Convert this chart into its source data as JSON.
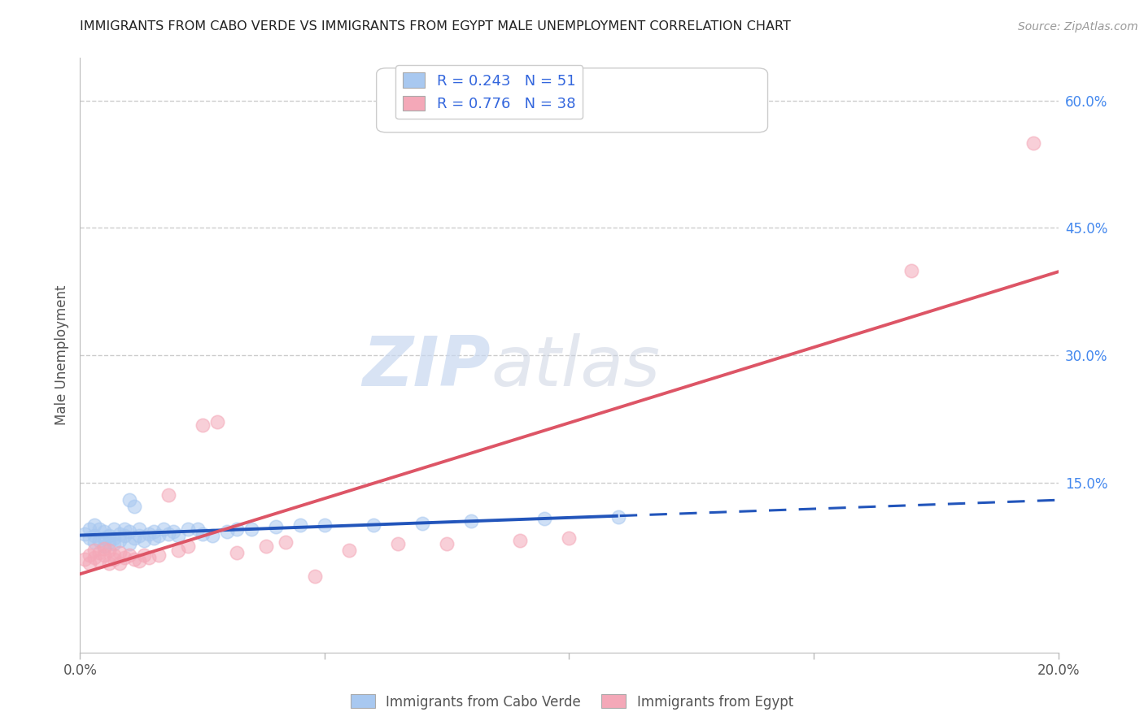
{
  "title": "IMMIGRANTS FROM CABO VERDE VS IMMIGRANTS FROM EGYPT MALE UNEMPLOYMENT CORRELATION CHART",
  "source": "Source: ZipAtlas.com",
  "ylabel": "Male Unemployment",
  "xlim": [
    0.0,
    0.2
  ],
  "ylim": [
    -0.05,
    0.65
  ],
  "legend_r1": "R = 0.243",
  "legend_n1": "N = 51",
  "legend_r2": "R = 0.776",
  "legend_n2": "N = 38",
  "color_blue": "#A8C8F0",
  "color_pink": "#F4A8B8",
  "color_blue_line": "#2255BB",
  "color_pink_line": "#DD5566",
  "cabo_verde_x": [
    0.001,
    0.002,
    0.002,
    0.003,
    0.003,
    0.003,
    0.004,
    0.004,
    0.005,
    0.005,
    0.005,
    0.006,
    0.006,
    0.007,
    0.007,
    0.007,
    0.008,
    0.008,
    0.009,
    0.009,
    0.01,
    0.01,
    0.01,
    0.011,
    0.011,
    0.012,
    0.012,
    0.013,
    0.014,
    0.015,
    0.015,
    0.016,
    0.017,
    0.018,
    0.019,
    0.02,
    0.022,
    0.024,
    0.025,
    0.027,
    0.03,
    0.032,
    0.035,
    0.04,
    0.045,
    0.05,
    0.06,
    0.07,
    0.08,
    0.095,
    0.11
  ],
  "cabo_verde_y": [
    0.09,
    0.085,
    0.095,
    0.08,
    0.088,
    0.1,
    0.082,
    0.095,
    0.085,
    0.092,
    0.075,
    0.088,
    0.08,
    0.095,
    0.085,
    0.078,
    0.09,
    0.082,
    0.095,
    0.088,
    0.092,
    0.13,
    0.078,
    0.122,
    0.085,
    0.088,
    0.095,
    0.082,
    0.09,
    0.092,
    0.085,
    0.088,
    0.095,
    0.09,
    0.092,
    0.088,
    0.095,
    0.095,
    0.09,
    0.088,
    0.092,
    0.095,
    0.095,
    0.098,
    0.1,
    0.1,
    0.1,
    0.102,
    0.105,
    0.108,
    0.11
  ],
  "egypt_x": [
    0.001,
    0.002,
    0.002,
    0.003,
    0.003,
    0.004,
    0.004,
    0.005,
    0.005,
    0.006,
    0.006,
    0.007,
    0.007,
    0.008,
    0.008,
    0.009,
    0.01,
    0.011,
    0.012,
    0.013,
    0.014,
    0.016,
    0.018,
    0.02,
    0.022,
    0.025,
    0.028,
    0.032,
    0.038,
    0.042,
    0.048,
    0.055,
    0.065,
    0.075,
    0.09,
    0.1,
    0.17,
    0.195
  ],
  "egypt_y": [
    0.06,
    0.065,
    0.055,
    0.062,
    0.07,
    0.068,
    0.058,
    0.072,
    0.065,
    0.055,
    0.07,
    0.065,
    0.06,
    0.068,
    0.055,
    0.062,
    0.065,
    0.06,
    0.058,
    0.065,
    0.062,
    0.065,
    0.135,
    0.07,
    0.075,
    0.218,
    0.222,
    0.068,
    0.075,
    0.08,
    0.04,
    0.07,
    0.078,
    0.078,
    0.082,
    0.085,
    0.4,
    0.55
  ],
  "watermark_zip": "ZIP",
  "watermark_atlas": "atlas",
  "grid_color": "#CCCCCC",
  "background_color": "#FFFFFF",
  "right_ytick_vals": [
    0.15,
    0.3,
    0.45,
    0.6
  ],
  "right_ytick_labels": [
    "15.0%",
    "30.0%",
    "45.0%",
    "60.0%"
  ],
  "xtick_positions": [
    0.0,
    0.05,
    0.1,
    0.15,
    0.2
  ],
  "xtick_labels": [
    "0.0%",
    "",
    "",
    "",
    "20.0%"
  ]
}
